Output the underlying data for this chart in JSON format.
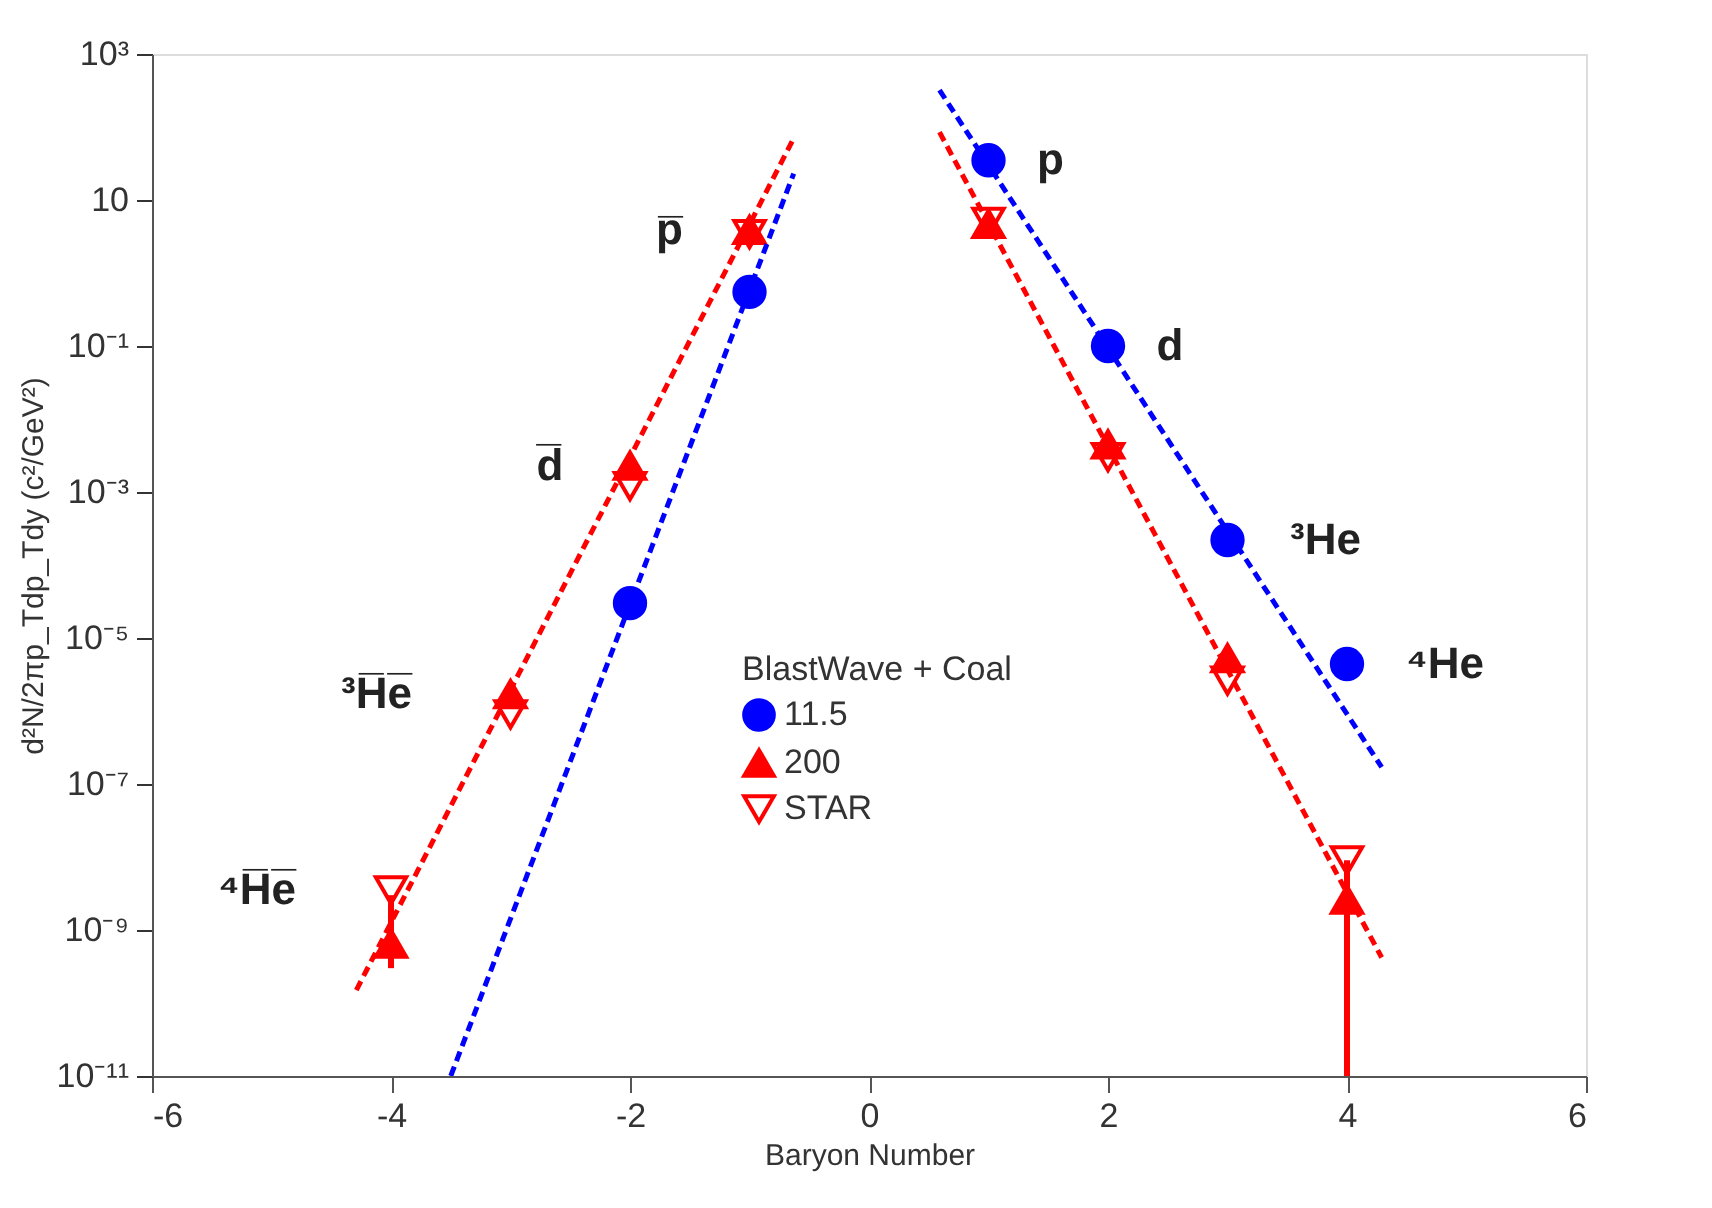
{
  "chart_data": {
    "type": "scatter",
    "xlabel": "Baryon Number",
    "ylabel": "d²N/2πp_Tdp_Tdy (c²/GeV²)",
    "legend_title": "BlastWave + Coal",
    "legend": "center",
    "log": "y",
    "grid": false,
    "xlim": [
      -6,
      6
    ],
    "xticks": [
      -6,
      -4,
      -2,
      0,
      2,
      4,
      6
    ],
    "ylim": [
      1e-11,
      1000
    ],
    "yticks": [
      {
        "value": 1000,
        "label": "10³"
      },
      10,
      {
        "value": 0.1,
        "label": "10⁻¹"
      },
      {
        "value": 0.001,
        "label": "10⁻³"
      },
      {
        "value": 1e-05,
        "label": "10⁻⁵"
      },
      {
        "value": 1e-07,
        "label": "10⁻⁷"
      },
      {
        "value": 1e-09,
        "label": "10⁻⁹"
      },
      {
        "value": 1e-11,
        "label": "10⁻¹¹"
      }
    ],
    "series": [
      {
        "name": "11.5",
        "marker": "circle",
        "color": "#0000ff",
        "x": [
          -2,
          -1,
          1,
          2,
          3,
          4
        ],
        "values": [
          3e-05,
          0.55,
          35,
          0.1,
          0.00022,
          4.4e-06
        ]
      },
      {
        "name": "200",
        "marker": "triangle",
        "color": "#ff0000",
        "x": [
          -4,
          -3,
          -2,
          -1,
          1,
          2,
          3,
          4
        ],
        "values": [
          6.5e-10,
          1.7e-06,
          0.0023,
          3.9,
          4.7,
          0.0045,
          5.3e-06,
          2.6e-09
        ],
        "errors": [
          [
            3e-10,
            3e-09
          ],
          null,
          null,
          null,
          null,
          null,
          null,
          [
            1e-11,
            9e-09
          ]
        ]
      },
      {
        "name": "STAR",
        "marker": "triangle-down-open",
        "color": "#ff0000",
        "x": [
          -4,
          -3,
          -2,
          -1,
          1,
          2,
          3,
          4
        ],
        "values": [
          3.5e-09,
          9e-07,
          0.0012,
          3.4,
          5,
          0.003,
          2.6e-06,
          9e-09
        ]
      },
      {
        "type": "line",
        "line_style": "dashed",
        "color": "#ff0000",
        "x": [
          -4.29,
          -0.63
        ],
        "values": [
          1.5e-10,
          70
        ]
      },
      {
        "type": "line",
        "line_style": "dashed",
        "color": "#0000ff",
        "x": [
          -3.5,
          -0.63
        ],
        "values": [
          1e-11,
          23
        ]
      },
      {
        "type": "line",
        "line_style": "dashed",
        "color": "#ff0000",
        "x": [
          0.59,
          4.29
        ],
        "values": [
          85,
          4.2e-10
        ]
      },
      {
        "type": "line",
        "line_style": "dashed",
        "color": "#0000ff",
        "x": [
          0.59,
          4.29
        ],
        "values": [
          320,
          1.7e-07
        ]
      }
    ],
    "annotations": [
      {
        "text": "p̅",
        "x": -1,
        "y": 3.9
      },
      {
        "text": "d̅",
        "x": -2,
        "y": 0.0023
      },
      {
        "text": "³H̅e̅",
        "x": -3,
        "y": 1.7e-06
      },
      {
        "text": "⁴H̅e̅",
        "x": -4,
        "y": 3.5e-09
      },
      {
        "text": "p",
        "x": 1,
        "y": 35
      },
      {
        "text": "d",
        "x": 2,
        "y": 0.1
      },
      {
        "text": "³He",
        "x": 3,
        "y": 0.00022
      },
      {
        "text": "⁴He",
        "x": 4,
        "y": 4.4e-06
      }
    ]
  }
}
